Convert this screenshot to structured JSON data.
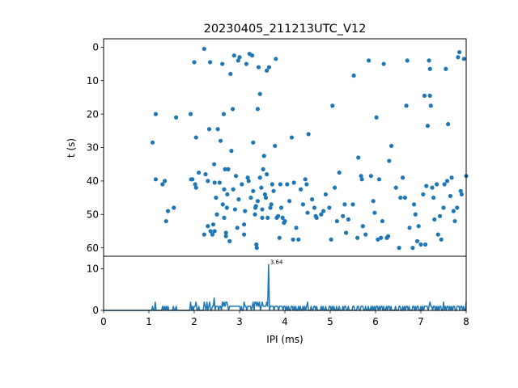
{
  "chart_data": [
    {
      "type": "scatter",
      "title": "20230405_211213UTC_V12",
      "xlabel": "",
      "ylabel": "t (s)",
      "xlim": [
        0,
        8
      ],
      "ylim": [
        62.5,
        -2.5
      ],
      "y_inverted": true,
      "yticks": [
        0,
        10,
        20,
        30,
        40,
        50,
        60
      ],
      "xticks_shared": true,
      "grid": false,
      "color": "#1f77b4",
      "points": [
        [
          1.08,
          28.5
        ],
        [
          1.15,
          39.5
        ],
        [
          1.15,
          20
        ],
        [
          1.3,
          41
        ],
        [
          1.35,
          40
        ],
        [
          1.38,
          52
        ],
        [
          1.42,
          49
        ],
        [
          1.55,
          48
        ],
        [
          1.6,
          21
        ],
        [
          1.92,
          20
        ],
        [
          1.93,
          39.5
        ],
        [
          1.96,
          39.5
        ],
        [
          2.0,
          4.5
        ],
        [
          2.02,
          41
        ],
        [
          2.04,
          27
        ],
        [
          2.04,
          42
        ],
        [
          2.1,
          37.5
        ],
        [
          2.22,
          0.5
        ],
        [
          2.22,
          56
        ],
        [
          2.25,
          38
        ],
        [
          2.3,
          53.5
        ],
        [
          2.3,
          40
        ],
        [
          2.33,
          24.5
        ],
        [
          2.35,
          4.5
        ],
        [
          2.36,
          55
        ],
        [
          2.4,
          56
        ],
        [
          2.42,
          53
        ],
        [
          2.44,
          35
        ],
        [
          2.45,
          55
        ],
        [
          2.45,
          40.5
        ],
        [
          2.48,
          45
        ],
        [
          2.5,
          50
        ],
        [
          2.52,
          24.5
        ],
        [
          2.56,
          40.5
        ],
        [
          2.58,
          28
        ],
        [
          2.62,
          5
        ],
        [
          2.63,
          47
        ],
        [
          2.65,
          20
        ],
        [
          2.66,
          51
        ],
        [
          2.66,
          42.5
        ],
        [
          2.68,
          36.5
        ],
        [
          2.7,
          55.5
        ],
        [
          2.7,
          56.5
        ],
        [
          2.72,
          48
        ],
        [
          2.73,
          44
        ],
        [
          2.75,
          36.5
        ],
        [
          2.78,
          58
        ],
        [
          2.8,
          8
        ],
        [
          2.82,
          31
        ],
        [
          2.85,
          18.5
        ],
        [
          2.86,
          42.5
        ],
        [
          2.88,
          2.5
        ],
        [
          2.9,
          48.5
        ],
        [
          2.92,
          38.5
        ],
        [
          2.95,
          54
        ],
        [
          2.97,
          4
        ],
        [
          2.98,
          45.5
        ],
        [
          3.0,
          3
        ],
        [
          3.05,
          41
        ],
        [
          3.1,
          53
        ],
        [
          3.1,
          56
        ],
        [
          3.12,
          49
        ],
        [
          3.15,
          5
        ],
        [
          3.18,
          39
        ],
        [
          3.2,
          40
        ],
        [
          3.22,
          2
        ],
        [
          3.25,
          45
        ],
        [
          3.28,
          2.5
        ],
        [
          3.3,
          43
        ],
        [
          3.3,
          28.5
        ],
        [
          3.34,
          50
        ],
        [
          3.35,
          48
        ],
        [
          3.36,
          47.5
        ],
        [
          3.37,
          59
        ],
        [
          3.38,
          60
        ],
        [
          3.4,
          46
        ],
        [
          3.4,
          18.5
        ],
        [
          3.42,
          6
        ],
        [
          3.45,
          39
        ],
        [
          3.45,
          14
        ],
        [
          3.48,
          42
        ],
        [
          3.5,
          51
        ],
        [
          3.5,
          48.5
        ],
        [
          3.52,
          36.5
        ],
        [
          3.54,
          32.5
        ],
        [
          3.56,
          44
        ],
        [
          3.58,
          45
        ],
        [
          3.6,
          38
        ],
        [
          3.6,
          7
        ],
        [
          3.62,
          51
        ],
        [
          3.65,
          6
        ],
        [
          3.68,
          48
        ],
        [
          3.7,
          47
        ],
        [
          3.72,
          41
        ],
        [
          3.75,
          43
        ],
        [
          3.78,
          29.5
        ],
        [
          3.8,
          3.5
        ],
        [
          3.82,
          51
        ],
        [
          3.85,
          50.5
        ],
        [
          3.88,
          57
        ],
        [
          3.9,
          41
        ],
        [
          3.92,
          48
        ],
        [
          3.95,
          51
        ],
        [
          3.98,
          52.5
        ],
        [
          4.0,
          52
        ],
        [
          4.05,
          41
        ],
        [
          4.1,
          46
        ],
        [
          4.15,
          27
        ],
        [
          4.18,
          57.5
        ],
        [
          4.2,
          40.5
        ],
        [
          4.25,
          54
        ],
        [
          4.3,
          57.5
        ],
        [
          4.35,
          42.5
        ],
        [
          4.4,
          47
        ],
        [
          4.45,
          39.5
        ],
        [
          4.48,
          41
        ],
        [
          4.5,
          49.5
        ],
        [
          4.52,
          26
        ],
        [
          4.6,
          45.5
        ],
        [
          4.65,
          48
        ],
        [
          4.68,
          50.5
        ],
        [
          4.7,
          51
        ],
        [
          4.8,
          50
        ],
        [
          4.85,
          49
        ],
        [
          4.9,
          44
        ],
        [
          4.98,
          48
        ],
        [
          5.02,
          57.5
        ],
        [
          5.05,
          17.5
        ],
        [
          5.1,
          42
        ],
        [
          5.15,
          52
        ],
        [
          5.2,
          37.5
        ],
        [
          5.28,
          50.5
        ],
        [
          5.32,
          47
        ],
        [
          5.35,
          55.5
        ],
        [
          5.4,
          51.5
        ],
        [
          5.5,
          47
        ],
        [
          5.52,
          8.5
        ],
        [
          5.6,
          57
        ],
        [
          5.62,
          33
        ],
        [
          5.68,
          38.5
        ],
        [
          5.7,
          39.5
        ],
        [
          5.72,
          53.5
        ],
        [
          5.78,
          56
        ],
        [
          5.85,
          4
        ],
        [
          5.9,
          38.5
        ],
        [
          5.95,
          46
        ],
        [
          5.98,
          49.5
        ],
        [
          6.02,
          21
        ],
        [
          6.05,
          57.5
        ],
        [
          6.08,
          39.5
        ],
        [
          6.12,
          57
        ],
        [
          6.15,
          52
        ],
        [
          6.18,
          5
        ],
        [
          6.25,
          57
        ],
        [
          6.28,
          56.5
        ],
        [
          6.3,
          34
        ],
        [
          6.35,
          29.5
        ],
        [
          6.45,
          42
        ],
        [
          6.52,
          60
        ],
        [
          6.55,
          45
        ],
        [
          6.6,
          39
        ],
        [
          6.65,
          45
        ],
        [
          6.68,
          17.5
        ],
        [
          6.7,
          4
        ],
        [
          6.75,
          54
        ],
        [
          6.82,
          60
        ],
        [
          6.85,
          47
        ],
        [
          6.88,
          50
        ],
        [
          6.92,
          58
        ],
        [
          6.95,
          53.5
        ],
        [
          7.0,
          59
        ],
        [
          7.05,
          44
        ],
        [
          7.08,
          14.5
        ],
        [
          7.1,
          59
        ],
        [
          7.12,
          41.5
        ],
        [
          7.15,
          23.5
        ],
        [
          7.2,
          14.5
        ],
        [
          7.18,
          4
        ],
        [
          7.2,
          6.5
        ],
        [
          7.22,
          17.5
        ],
        [
          7.25,
          42
        ],
        [
          7.28,
          45
        ],
        [
          7.3,
          51.5
        ],
        [
          7.35,
          41
        ],
        [
          7.38,
          56
        ],
        [
          7.42,
          50.5
        ],
        [
          7.45,
          57.5
        ],
        [
          7.5,
          48
        ],
        [
          7.52,
          41
        ],
        [
          7.55,
          6.5
        ],
        [
          7.58,
          40
        ],
        [
          7.6,
          23
        ],
        [
          7.65,
          44.5
        ],
        [
          7.68,
          39
        ],
        [
          7.72,
          49
        ],
        [
          7.75,
          52
        ],
        [
          7.8,
          48
        ],
        [
          7.82,
          3
        ],
        [
          7.85,
          1.5
        ],
        [
          7.88,
          43
        ],
        [
          7.9,
          44
        ],
        [
          7.95,
          3.5
        ],
        [
          8.0,
          38.5
        ],
        [
          8.02,
          49
        ],
        [
          8.05,
          22
        ],
        [
          8.08,
          59.5
        ],
        [
          8.1,
          2.5
        ],
        [
          8.12,
          22.5
        ]
      ]
    },
    {
      "type": "line",
      "xlabel": "IPI (ms)",
      "ylabel": "",
      "xlim": [
        0,
        8
      ],
      "ylim": [
        0,
        13
      ],
      "xticks": [
        0,
        1,
        2,
        3,
        4,
        5,
        6,
        7,
        8
      ],
      "yticks": [
        0,
        10
      ],
      "grid": false,
      "color": "#1f77b4",
      "peak_annotation": {
        "x": 3.64,
        "y": 11,
        "label": "3.64"
      },
      "line_color": "#1f77b4"
    }
  ]
}
